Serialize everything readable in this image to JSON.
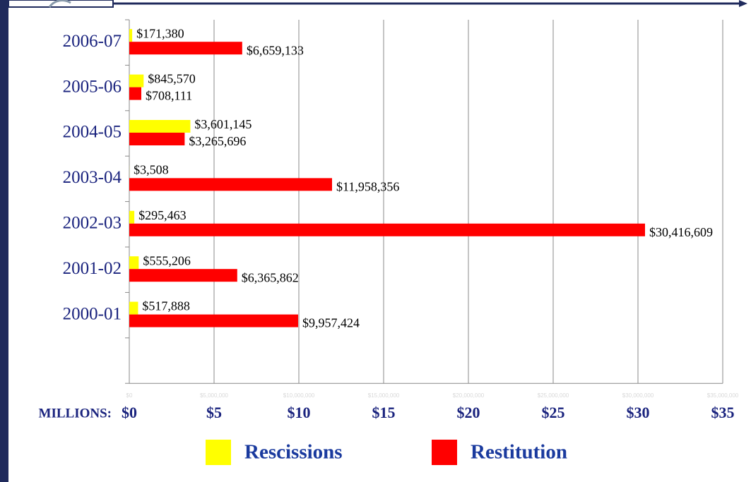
{
  "chart_data": {
    "type": "bar",
    "orientation": "horizontal",
    "categories": [
      "2006-07",
      "2005-06",
      "2004-05",
      "2003-04",
      "2002-03",
      "2001-02",
      "2000-01"
    ],
    "series": [
      {
        "name": "Rescissions",
        "color": "#ffff00",
        "values": [
          171380,
          845570,
          3601145,
          3508,
          295463,
          555206,
          517888
        ],
        "value_labels": [
          "$171,380",
          "$845,570",
          "$3,601,145",
          "$3,508",
          "$295,463",
          "$555,206",
          "$517,888"
        ]
      },
      {
        "name": "Restitution",
        "color": "#ff0000",
        "values": [
          6659133,
          708111,
          3265696,
          11958356,
          30416609,
          6365862,
          9957424
        ],
        "value_labels": [
          "$6,659,133",
          "$708,111",
          "$3,265,696",
          "$11,958,356",
          "$30,416,609",
          "$6,365,862",
          "$9,957,424"
        ]
      }
    ],
    "xlim": [
      0,
      35000000
    ],
    "xticks": [
      {
        "value": 0,
        "label": "$0"
      },
      {
        "value": 5000000,
        "label": "$5"
      },
      {
        "value": 10000000,
        "label": "$10"
      },
      {
        "value": 15000000,
        "label": "$15"
      },
      {
        "value": 20000000,
        "label": "$20"
      },
      {
        "value": 25000000,
        "label": "$25"
      },
      {
        "value": 30000000,
        "label": "$30"
      },
      {
        "value": 35000000,
        "label": "$35"
      }
    ],
    "x_axis_small_labels": [
      "$0",
      "$5,000,000",
      "$10,000,000",
      "$15,000,000",
      "$20,000,000",
      "$25,000,000",
      "$30,000,000",
      "$35,000,000"
    ],
    "x_axis_label": "MILLIONS:",
    "grid": true
  }
}
